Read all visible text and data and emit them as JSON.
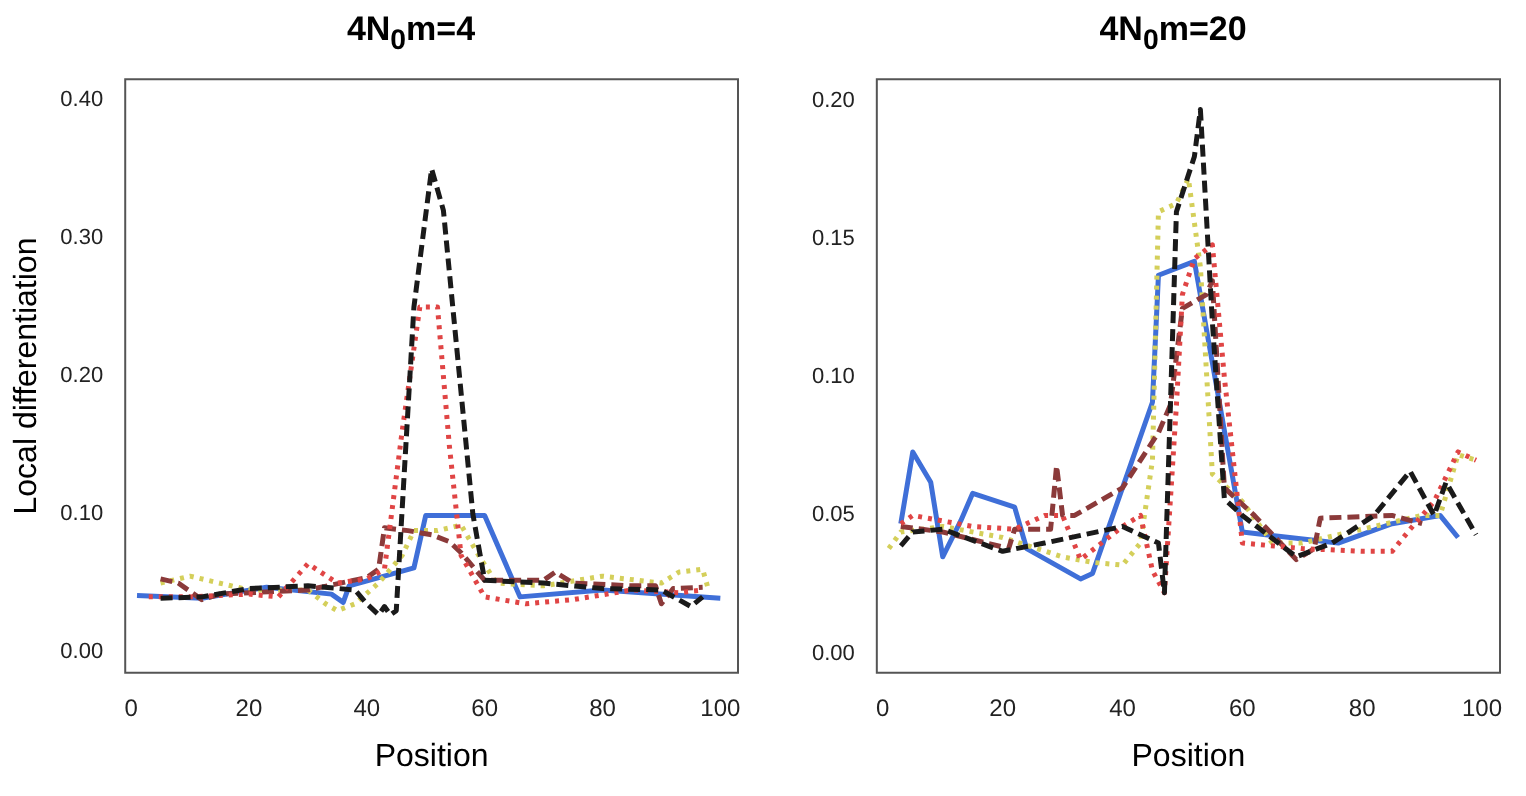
{
  "chart_data": [
    {
      "type": "line",
      "title": "4N$_{0}$m=4",
      "xlabel": "Position",
      "ylabel": "Local differentiation",
      "xlim": [
        -1,
        103
      ],
      "xticks": [
        0,
        20,
        40,
        60,
        80,
        100
      ],
      "ylim": [
        -0.015,
        0.415
      ],
      "yticks": [
        {
          "value": 0,
          "label": "0.00"
        },
        {
          "value": 0.1,
          "label": "0.10"
        },
        {
          "value": 0.2,
          "label": "0.20"
        },
        {
          "value": 0.3,
          "label": "0.30"
        },
        {
          "value": 0.4,
          "label": "0.40"
        }
      ],
      "grid": false,
      "legend": false,
      "marker": "none",
      "series": [
        {
          "color": "#1a1a1a",
          "line_style": "dashed",
          "x": [
            5,
            12,
            20,
            30,
            38,
            40,
            42,
            43,
            44,
            45,
            48,
            51,
            53,
            58,
            60,
            70,
            80,
            90,
            95,
            97
          ],
          "values": [
            0.039,
            0.04,
            0.046,
            0.048,
            0.045,
            0.035,
            0.027,
            0.033,
            0.027,
            0.03,
            0.25,
            0.35,
            0.32,
            0.1,
            0.052,
            0.05,
            0.046,
            0.045,
            0.033,
            0.04
          ]
        },
        {
          "color": "#e04545",
          "line_style": "dotted",
          "x": [
            3,
            10,
            20,
            25,
            30,
            35,
            40,
            43,
            46,
            49,
            52,
            54,
            56,
            60,
            67,
            75,
            85,
            93,
            97
          ],
          "values": [
            0.04,
            0.04,
            0.042,
            0.04,
            0.064,
            0.05,
            0.053,
            0.06,
            0.16,
            0.25,
            0.25,
            0.15,
            0.07,
            0.04,
            0.035,
            0.038,
            0.045,
            0.043,
            0.045
          ]
        },
        {
          "color": "#8b3a3a",
          "line_style": "dashed",
          "x": [
            5,
            8,
            12,
            15,
            30,
            40,
            42,
            43,
            47,
            51,
            54,
            56,
            60,
            70,
            72,
            75,
            85,
            89,
            90,
            92,
            97
          ],
          "values": [
            0.053,
            0.05,
            0.038,
            0.042,
            0.045,
            0.054,
            0.06,
            0.09,
            0.088,
            0.085,
            0.08,
            0.072,
            0.052,
            0.052,
            0.058,
            0.05,
            0.048,
            0.048,
            0.035,
            0.046,
            0.047
          ]
        },
        {
          "color": "#d4cf5a",
          "line_style": "dotted",
          "x": [
            5,
            10,
            20,
            30,
            33,
            35,
            38,
            42,
            46,
            48,
            52,
            56,
            59,
            62,
            70,
            80,
            90,
            93,
            97,
            98
          ],
          "values": [
            0.05,
            0.055,
            0.045,
            0.045,
            0.035,
            0.03,
            0.035,
            0.05,
            0.07,
            0.088,
            0.088,
            0.092,
            0.07,
            0.05,
            0.048,
            0.055,
            0.05,
            0.058,
            0.06,
            0.045
          ]
        },
        {
          "color": "#3f6fd8",
          "line_style": "solid",
          "x": [
            1,
            12,
            23,
            34,
            36,
            37,
            48,
            50,
            60,
            66,
            80,
            100
          ],
          "values": [
            0.041,
            0.039,
            0.047,
            0.042,
            0.036,
            0.048,
            0.061,
            0.099,
            0.099,
            0.04,
            0.045,
            0.039
          ]
        }
      ]
    },
    {
      "type": "line",
      "title": "4N$_{0}$m=20",
      "xlabel": "Position",
      "xlim": [
        -1,
        103
      ],
      "xticks": [
        0,
        20,
        40,
        60,
        80,
        100
      ],
      "ylim": [
        -0.007,
        0.208
      ],
      "yticks": [
        {
          "value": 0,
          "label": "0.00"
        },
        {
          "value": 0.05,
          "label": "0.05"
        },
        {
          "value": 0.1,
          "label": "0.10"
        },
        {
          "value": 0.15,
          "label": "0.15"
        },
        {
          "value": 0.2,
          "label": "0.20"
        }
      ],
      "grid": false,
      "legend": false,
      "marker": "none",
      "series": [
        {
          "color": "#1a1a1a",
          "line_style": "dashed",
          "x": [
            3,
            5,
            10,
            20,
            27,
            40,
            46,
            47,
            48,
            49,
            52,
            53,
            55,
            57,
            60,
            69,
            75,
            82,
            88,
            92,
            94,
            99
          ],
          "values": [
            0.039,
            0.044,
            0.045,
            0.037,
            0.04,
            0.046,
            0.04,
            0.022,
            0.09,
            0.16,
            0.18,
            0.197,
            0.12,
            0.056,
            0.05,
            0.035,
            0.04,
            0.05,
            0.066,
            0.05,
            0.062,
            0.043
          ]
        },
        {
          "color": "#e04545",
          "line_style": "dotted",
          "x": [
            3,
            5,
            15,
            22,
            27,
            30,
            33,
            40,
            43,
            45,
            47,
            49,
            50,
            52,
            55,
            57,
            60,
            70,
            80,
            85,
            88,
            92,
            96,
            99
          ],
          "values": [
            0.047,
            0.05,
            0.046,
            0.045,
            0.05,
            0.05,
            0.034,
            0.046,
            0.05,
            0.03,
            0.022,
            0.09,
            0.13,
            0.143,
            0.148,
            0.1,
            0.04,
            0.038,
            0.037,
            0.037,
            0.045,
            0.055,
            0.073,
            0.07
          ]
        },
        {
          "color": "#8b3a3a",
          "line_style": "dashed",
          "x": [
            3,
            10,
            21,
            22,
            28,
            29,
            30,
            32,
            40,
            46,
            48,
            50,
            54,
            55,
            57,
            62,
            69,
            72,
            73,
            85,
            90
          ],
          "values": [
            0.046,
            0.044,
            0.038,
            0.045,
            0.045,
            0.068,
            0.05,
            0.05,
            0.06,
            0.08,
            0.09,
            0.125,
            0.13,
            0.135,
            0.06,
            0.05,
            0.034,
            0.038,
            0.049,
            0.05,
            0.047
          ]
        },
        {
          "color": "#d4cf5a",
          "line_style": "dotted",
          "x": [
            1,
            3,
            10,
            20,
            30,
            35,
            40,
            43,
            45,
            46,
            49,
            51,
            53,
            55,
            60,
            65,
            70,
            80,
            90,
            93,
            96,
            99
          ],
          "values": [
            0.038,
            0.044,
            0.046,
            0.042,
            0.035,
            0.033,
            0.032,
            0.04,
            0.07,
            0.16,
            0.163,
            0.172,
            0.14,
            0.065,
            0.055,
            0.04,
            0.04,
            0.045,
            0.05,
            0.05,
            0.072,
            0.07
          ]
        },
        {
          "color": "#3f6fd8",
          "line_style": "solid",
          "x": [
            3,
            5,
            8,
            10,
            13,
            15,
            22,
            24,
            33,
            35,
            45,
            46,
            52,
            60,
            76,
            85,
            93,
            96
          ],
          "values": [
            0.047,
            0.073,
            0.062,
            0.035,
            0.048,
            0.058,
            0.053,
            0.038,
            0.027,
            0.029,
            0.091,
            0.137,
            0.142,
            0.044,
            0.04,
            0.047,
            0.05,
            0.042
          ]
        }
      ]
    }
  ]
}
